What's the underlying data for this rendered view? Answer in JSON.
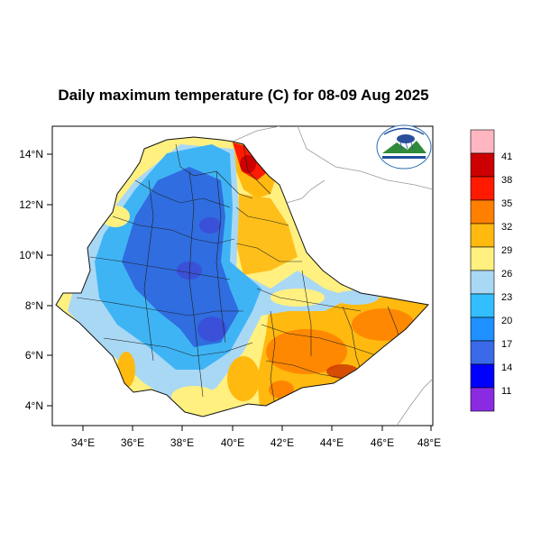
{
  "title": "Daily maximum temperature (C) for 08-09 Aug 2025",
  "axes": {
    "x_ticks": [
      "34°E",
      "36°E",
      "38°E",
      "40°E",
      "42°E",
      "44°E",
      "46°E",
      "48°E"
    ],
    "y_ticks": [
      "14°N",
      "12°N",
      "10°N",
      "8°N",
      "6°N",
      "4°N"
    ]
  },
  "colorbar": {
    "labels": [
      "41",
      "38",
      "35",
      "32",
      "29",
      "26",
      "23",
      "20",
      "17",
      "14",
      "11"
    ],
    "colors": [
      "#ffb6c1",
      "#cc0000",
      "#ff1a00",
      "#ff7f00",
      "#ffb90f",
      "#fff080",
      "#a9d8f5",
      "#33bfff",
      "#1e90ff",
      "#3a6ae8",
      "#0000ff",
      "#8a2be2"
    ]
  },
  "map_colors": {
    "cold": "#2f6de0",
    "cool": "#3fb4f5",
    "mild": "#a9d8f5",
    "warm": "#fff080",
    "hot": "#ffb90f",
    "very_hot": "#ff7f00",
    "extreme": "#e80000"
  },
  "logo": {
    "description_icon": "ethiopian-meteorology-institute-logo"
  }
}
